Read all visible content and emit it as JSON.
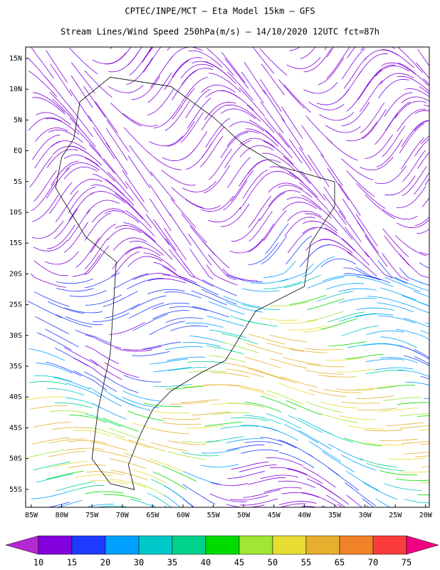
{
  "header": {
    "title": "CPTEC/INPE/MCT —  Eta Model 15km — GFS",
    "subtitle": "Stream Lines/Wind Speed 250hPa(m/s) — 14/10/2020 12UTC fct=87h"
  },
  "map": {
    "lat_labels": [
      "15N",
      "10N",
      "5N",
      "EQ",
      "5S",
      "10S",
      "15S",
      "20S",
      "25S",
      "30S",
      "35S",
      "40S",
      "45S",
      "50S",
      "55S"
    ],
    "lon_labels": [
      "85W",
      "80W",
      "75W",
      "70W",
      "65W",
      "60W",
      "55W",
      "50W",
      "45W",
      "40W",
      "35W",
      "30W",
      "25W",
      "20W"
    ]
  },
  "colorbar": {
    "labels": [
      10,
      15,
      20,
      30,
      35,
      40,
      45,
      50,
      55,
      65,
      70,
      75
    ],
    "under_color": "#b428d2",
    "colors": [
      "#8200dc",
      "#1e3cff",
      "#00a0ff",
      "#00c8c8",
      "#00d28c",
      "#00dc00",
      "#a0e632",
      "#e6dc32",
      "#e6af2d",
      "#f08228",
      "#fa3c3c"
    ],
    "over_color": "#f00082"
  }
}
